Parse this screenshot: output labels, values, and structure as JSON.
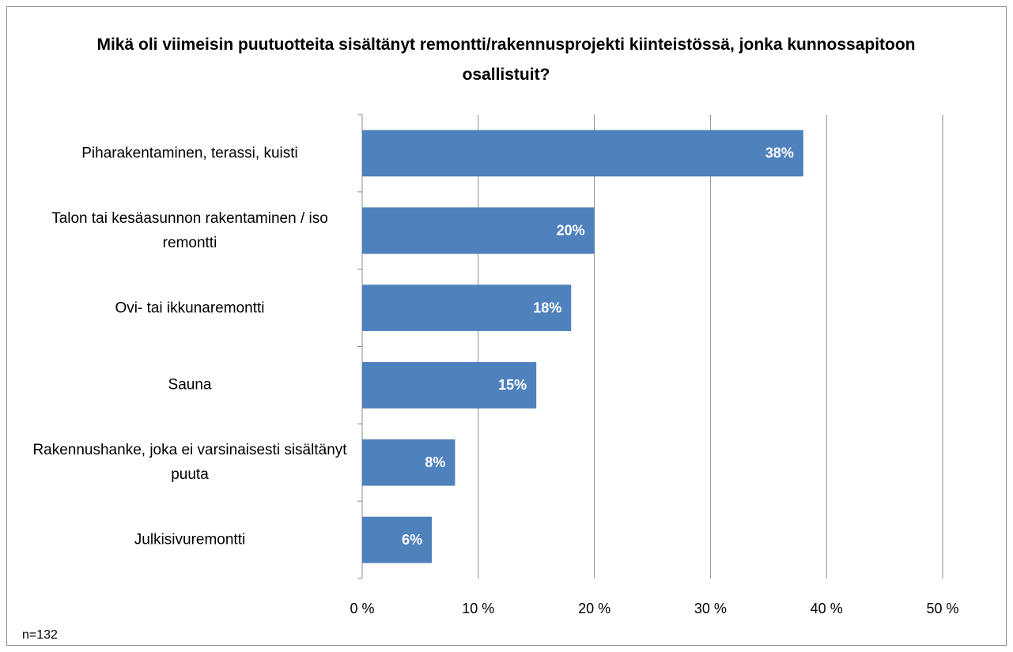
{
  "chart_data": {
    "type": "barh",
    "title": "Mikä oli viimeisin puutuotteita sisältänyt remontti/rakennusprojekti kiinteistössä, jonka kunnossapitoon osallistuit?",
    "categories": [
      "Piharakentaminen, terassi, kuisti",
      "Talon tai kesäasunnon rakentaminen / iso remontti",
      "Ovi- tai ikkunaremontti",
      "Sauna",
      "Rakennushanke, joka ei varsinaisesti sisältänyt puuta",
      "Julkisivuremontti"
    ],
    "values": [
      38,
      20,
      18,
      15,
      8,
      6
    ],
    "value_labels": [
      "38%",
      "20%",
      "18%",
      "15%",
      "8%",
      "6%"
    ],
    "color": "#4f81bd",
    "xlim": [
      0,
      50
    ],
    "xticks": [
      {
        "value": 0,
        "label": "0 %"
      },
      {
        "value": 10,
        "label": "10 %"
      },
      {
        "value": 20,
        "label": "20 %"
      },
      {
        "value": 30,
        "label": "30 %"
      },
      {
        "value": 40,
        "label": "40 %"
      },
      {
        "value": 50,
        "label": "50 %"
      }
    ],
    "grid": true,
    "note": "n=132"
  }
}
